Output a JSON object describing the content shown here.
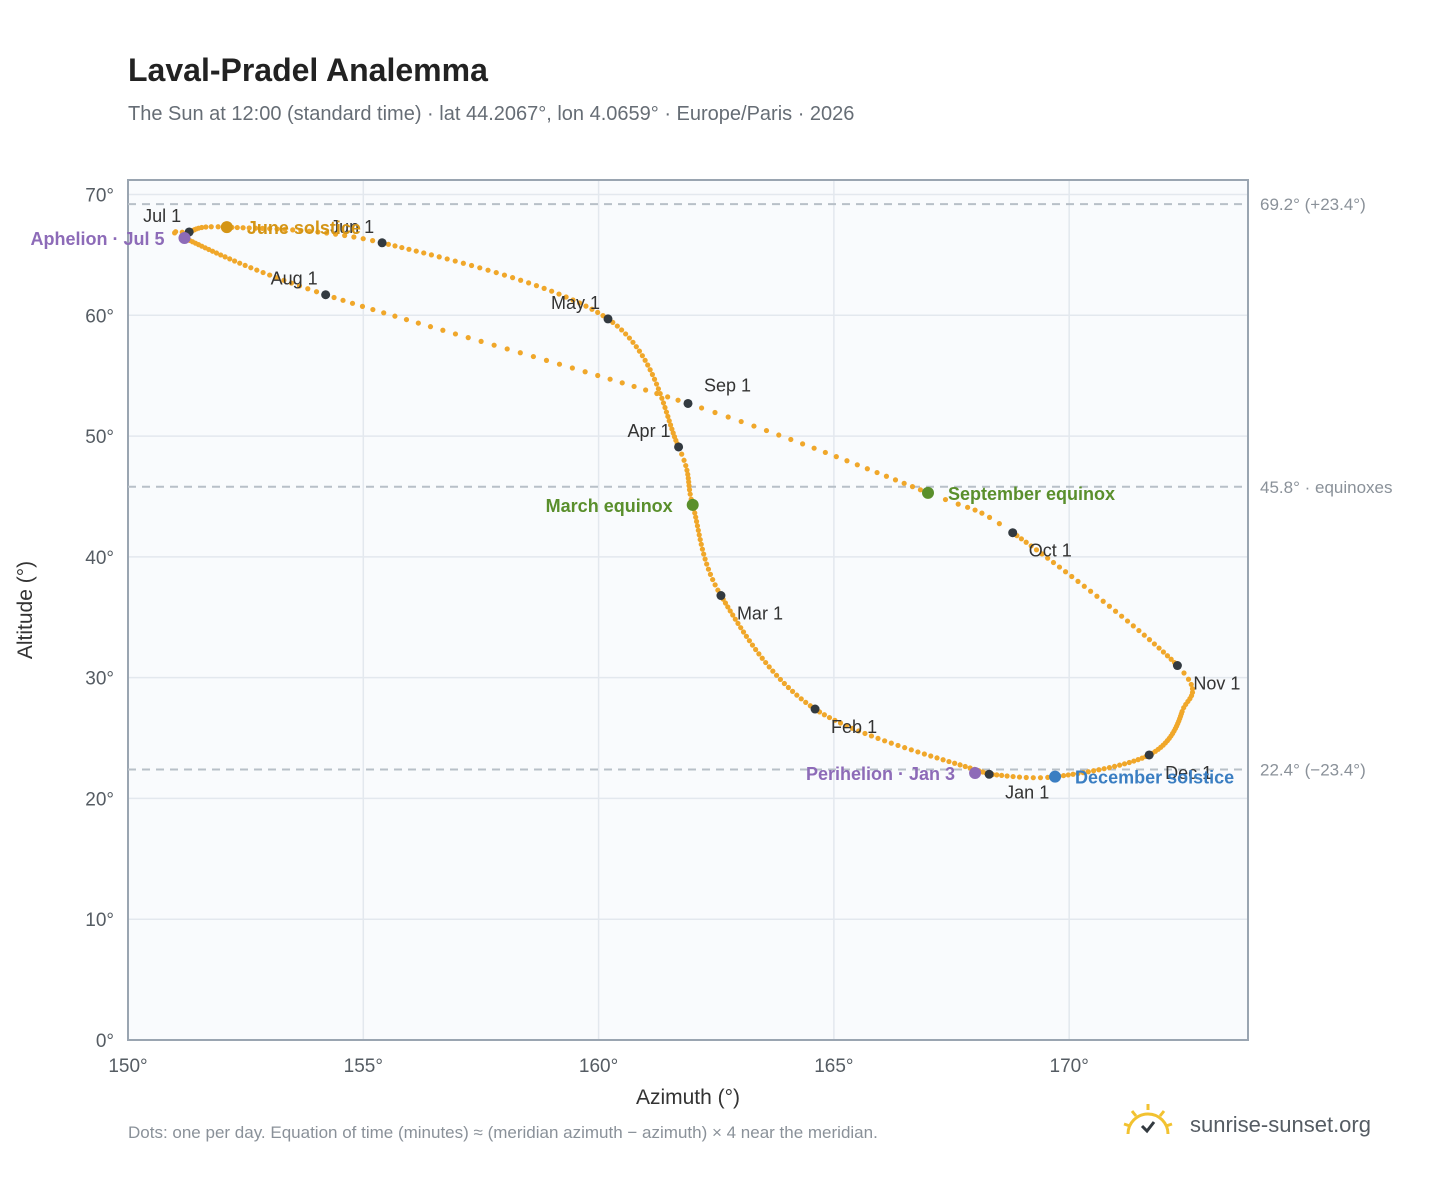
{
  "title": "Laval-Pradel Analemma",
  "subtitle": "The Sun at 12:00 (standard time) · lat 44.2067°, lon 4.0659° · Europe/Paris · 2026",
  "footnote": "Dots: one per day. Equation of time (minutes) ≈ (meridian azimuth − azimuth) × 4 near the meridian.",
  "brand": {
    "text": "sunrise-sunset.org",
    "icon": "sun-icon"
  },
  "colors": {
    "path": "#f0a72a",
    "month_dot": "#333a40",
    "grid": "#e3e8ee",
    "plot_bg": "#f9fbfd",
    "frame": "#9aa5b1",
    "ref_line": "#b8c0c8",
    "equinox": "#5a8f2c",
    "june_solstice": "#d49516",
    "december_solstice": "#3a7ec2",
    "apsis": "#8d6bb8"
  },
  "chart_data": {
    "type": "scatter",
    "title": "Laval-Pradel Analemma",
    "xlabel": "Azimuth (°)",
    "ylabel": "Altitude (°)",
    "xlim": [
      150,
      173.8
    ],
    "ylim": [
      0,
      71.2
    ],
    "x_ticks": [
      "150°",
      "155°",
      "160°",
      "165°",
      "170°"
    ],
    "y_ticks": [
      "0°",
      "10°",
      "20°",
      "30°",
      "40°",
      "50°",
      "60°",
      "70°"
    ],
    "grid": true,
    "anchors": [
      {
        "d": 0,
        "az": 168.3,
        "alt": 22.0
      },
      {
        "d": 31,
        "az": 164.6,
        "alt": 27.4
      },
      {
        "d": 59,
        "az": 162.6,
        "alt": 36.8
      },
      {
        "d": 78,
        "az": 162.0,
        "alt": 44.3
      },
      {
        "d": 90,
        "az": 161.7,
        "alt": 49.1
      },
      {
        "d": 120,
        "az": 160.2,
        "alt": 59.7
      },
      {
        "d": 151,
        "az": 155.4,
        "alt": 66.0
      },
      {
        "d": 171,
        "az": 152.1,
        "alt": 67.3
      },
      {
        "d": 181,
        "az": 151.3,
        "alt": 66.9
      },
      {
        "d": 185,
        "az": 151.2,
        "alt": 66.4
      },
      {
        "d": 212,
        "az": 154.2,
        "alt": 61.7
      },
      {
        "d": 243,
        "az": 161.9,
        "alt": 52.7
      },
      {
        "d": 265,
        "az": 167.0,
        "alt": 45.3
      },
      {
        "d": 273,
        "az": 168.8,
        "alt": 42.0
      },
      {
        "d": 304,
        "az": 172.3,
        "alt": 31.0
      },
      {
        "d": 315,
        "az": 172.4,
        "alt": 27.2
      },
      {
        "d": 334,
        "az": 171.7,
        "alt": 23.6
      },
      {
        "d": 354,
        "az": 169.7,
        "alt": 21.8
      },
      {
        "d": 365,
        "az": 168.3,
        "alt": 22.0
      }
    ],
    "month_markers": [
      {
        "label": "Jan 1",
        "az": 168.3,
        "alt": 22.0,
        "pos": "below-right"
      },
      {
        "label": "Feb 1",
        "az": 164.6,
        "alt": 27.4,
        "pos": "below-right"
      },
      {
        "label": "Mar 1",
        "az": 162.6,
        "alt": 36.8,
        "pos": "below-right"
      },
      {
        "label": "Apr 1",
        "az": 161.7,
        "alt": 49.1,
        "pos": "above-left"
      },
      {
        "label": "May 1",
        "az": 160.2,
        "alt": 59.7,
        "pos": "above-left"
      },
      {
        "label": "Jun 1",
        "az": 155.4,
        "alt": 66.0,
        "pos": "above-left"
      },
      {
        "label": "Jul 1",
        "az": 151.3,
        "alt": 66.9,
        "pos": "above-left"
      },
      {
        "label": "Aug 1",
        "az": 154.2,
        "alt": 61.7,
        "pos": "above-left"
      },
      {
        "label": "Sep 1",
        "az": 161.9,
        "alt": 52.7,
        "pos": "above-right"
      },
      {
        "label": "Oct 1",
        "az": 168.8,
        "alt": 42.0,
        "pos": "below-right"
      },
      {
        "label": "Nov 1",
        "az": 172.3,
        "alt": 31.0,
        "pos": "below-right"
      },
      {
        "label": "Dec 1",
        "az": 171.7,
        "alt": 23.6,
        "pos": "below-right"
      }
    ],
    "events": [
      {
        "label": "June solstice",
        "az": 152.1,
        "alt": 67.3,
        "color": "#d49516",
        "side": "right"
      },
      {
        "label": "Aphelion · Jul 5",
        "az": 151.2,
        "alt": 66.4,
        "color": "#8d6bb8",
        "side": "left"
      },
      {
        "label": "March equinox",
        "az": 162.0,
        "alt": 44.3,
        "color": "#5a8f2c",
        "side": "left"
      },
      {
        "label": "September equinox",
        "az": 167.0,
        "alt": 45.3,
        "color": "#5a8f2c",
        "side": "right"
      },
      {
        "label": "Perihelion · Jan 3",
        "az": 168.0,
        "alt": 22.1,
        "color": "#8d6bb8",
        "side": "left"
      },
      {
        "label": "December solstice",
        "az": 169.7,
        "alt": 21.8,
        "color": "#3a7ec2",
        "side": "right"
      }
    ],
    "reference_lines": [
      {
        "alt": 69.2,
        "label": "69.2° (+23.4°)"
      },
      {
        "alt": 45.8,
        "label": "45.8° · equinoxes"
      },
      {
        "alt": 22.4,
        "label": "22.4° (−23.4°)"
      }
    ]
  }
}
